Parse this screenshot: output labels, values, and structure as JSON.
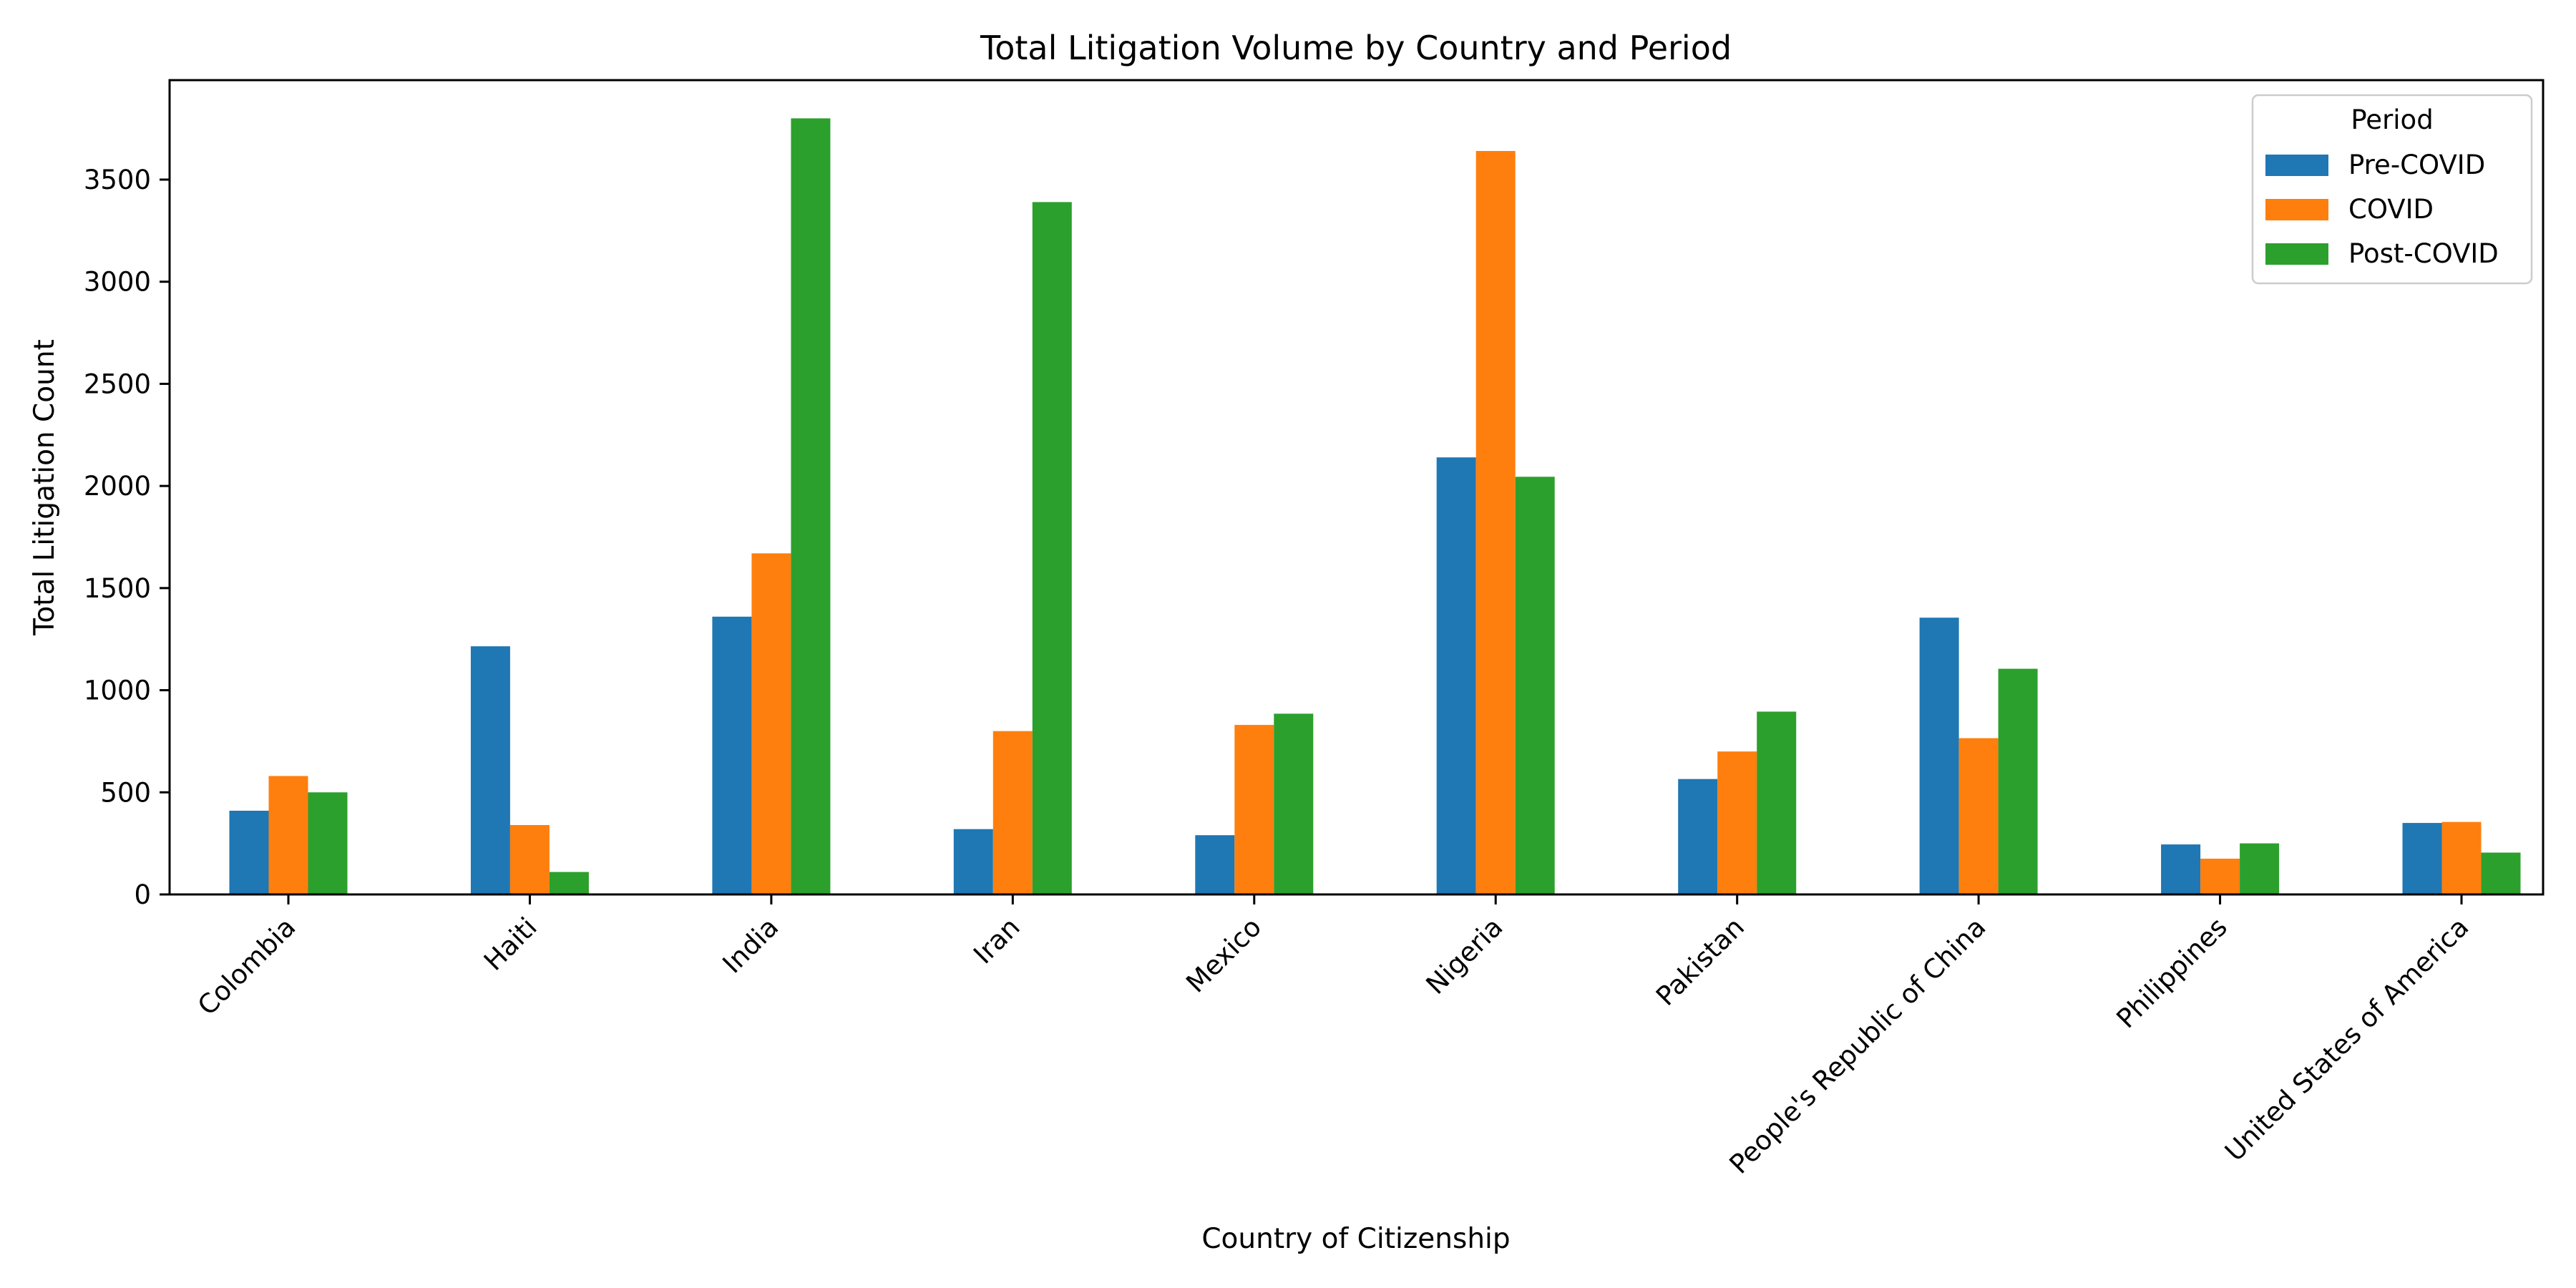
{
  "chart_data": {
    "type": "bar",
    "title": "Total Litigation Volume by Country and Period",
    "xlabel": "Country of Citizenship",
    "ylabel": "Total Litigation Count",
    "ylim": [
      0,
      4000
    ],
    "yticks": [
      0,
      500,
      1000,
      1500,
      2000,
      2500,
      3000,
      3500
    ],
    "grid": false,
    "legend": {
      "title": "Period",
      "placement": "top-right"
    },
    "categories": [
      "Colombia",
      "Haiti",
      "India",
      "Iran",
      "Mexico",
      "Nigeria",
      "Pakistan",
      "People's Republic of China",
      "Philippines",
      "United States of America"
    ],
    "series": [
      {
        "name": "Pre-COVID",
        "color": "#1f77b4",
        "values": [
          410,
          1215,
          1360,
          320,
          290,
          2140,
          565,
          1355,
          245,
          350
        ]
      },
      {
        "name": "COVID",
        "color": "#ff7f0e",
        "values": [
          580,
          340,
          1670,
          800,
          830,
          3640,
          700,
          765,
          175,
          355
        ]
      },
      {
        "name": "Post-COVID",
        "color": "#2ca02c",
        "values": [
          500,
          110,
          3800,
          3390,
          885,
          2045,
          895,
          1105,
          250,
          205
        ]
      }
    ]
  }
}
